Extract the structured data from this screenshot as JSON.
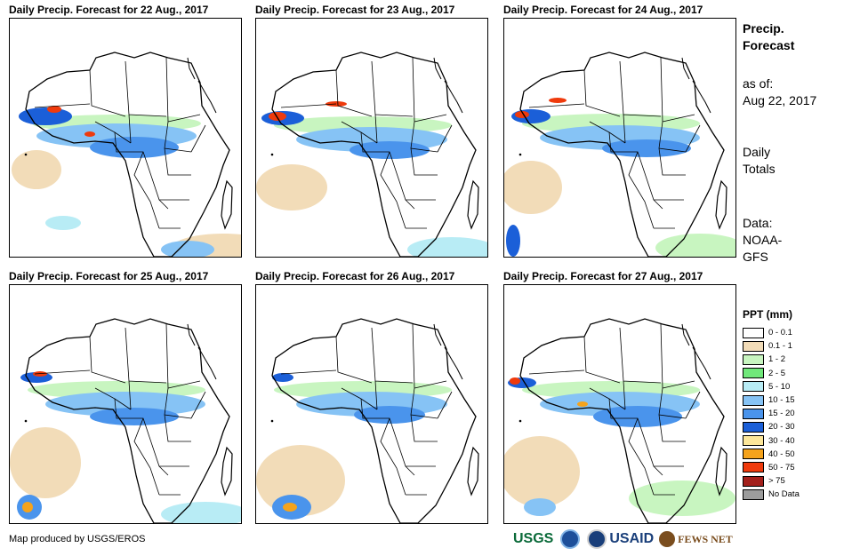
{
  "panels": [
    {
      "title": "Daily Precip. Forecast for 22 Aug., 2017"
    },
    {
      "title": "Daily Precip. Forecast for 23 Aug., 2017"
    },
    {
      "title": "Daily Precip. Forecast for 24 Aug., 2017"
    },
    {
      "title": "Daily Precip. Forecast for 25 Aug., 2017"
    },
    {
      "title": "Daily Precip. Forecast for 26 Aug., 2017"
    },
    {
      "title": "Daily Precip. Forecast for 27 Aug., 2017"
    }
  ],
  "sidebar": {
    "heading1": "Precip.",
    "heading2": "Forecast",
    "asof_label": "as of:",
    "asof_date": "Aug 22, 2017",
    "totals1": "Daily",
    "totals2": "Totals",
    "data1": "Data:",
    "data2": "NOAA-",
    "data3": "GFS"
  },
  "legend": {
    "title": "PPT (mm)",
    "items": [
      {
        "label": "0 - 0.1",
        "color": "#ffffff"
      },
      {
        "label": "0.1 - 1",
        "color": "#f2dcb8"
      },
      {
        "label": "1 - 2",
        "color": "#c8f5c0"
      },
      {
        "label": "2 - 5",
        "color": "#70e87a"
      },
      {
        "label": "5 - 10",
        "color": "#b8ecf5"
      },
      {
        "label": "10 - 15",
        "color": "#86c3f5"
      },
      {
        "label": "15 - 20",
        "color": "#4a94ec"
      },
      {
        "label": "20 - 30",
        "color": "#1b5fd8"
      },
      {
        "label": "30 - 40",
        "color": "#fde79a"
      },
      {
        "label": "40 - 50",
        "color": "#f5a31c"
      },
      {
        "label": "50 - 75",
        "color": "#ef3a0c"
      },
      {
        "label": "> 75",
        "color": "#a3201c"
      },
      {
        "label": "No Data",
        "color": "#9c9c9c"
      }
    ]
  },
  "credit": "Map produced by USGS/EROS",
  "logos": {
    "usgs": "USGS",
    "usaid": "USAID",
    "fews": "FEWS NET"
  }
}
